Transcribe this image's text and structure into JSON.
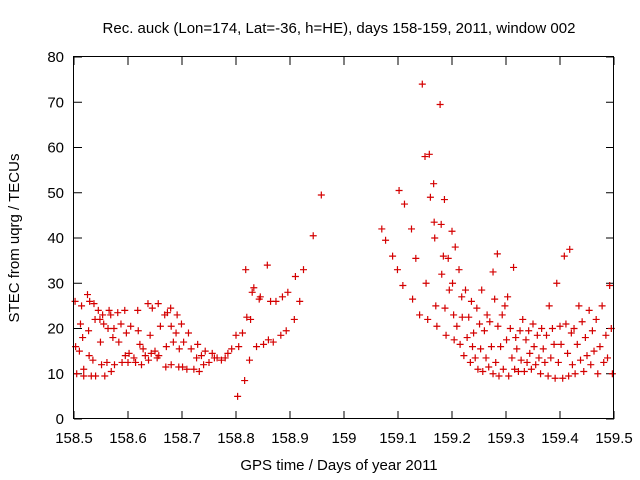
{
  "chart_data": {
    "type": "scatter",
    "title": "Rec. auck (Lon=174, Lat=-36, h=HE), days 158-159, 2011, window 002",
    "xlabel": "GPS time / Days of year 2011",
    "ylabel": "STEC from uqrg / TECUs",
    "xlim": [
      158.5,
      159.5
    ],
    "ylim": [
      0,
      80
    ],
    "xticks": [
      "158.5",
      "158.6",
      "158.7",
      "158.8",
      "158.9",
      "159",
      "159.1",
      "159.2",
      "159.3",
      "159.4",
      "159.5"
    ],
    "yticks": [
      "0",
      "10",
      "20",
      "30",
      "40",
      "50",
      "60",
      "70",
      "80"
    ],
    "grid": false,
    "legend": "none",
    "marker": "plus",
    "color": "#d40000",
    "points": [
      [
        158.502,
        26.0
      ],
      [
        158.503,
        16.0
      ],
      [
        158.505,
        10.0
      ],
      [
        158.51,
        15.0
      ],
      [
        158.512,
        21.0
      ],
      [
        158.514,
        25.0
      ],
      [
        158.516,
        18.0
      ],
      [
        158.518,
        11.0
      ],
      [
        158.518,
        9.5
      ],
      [
        158.525,
        27.5
      ],
      [
        158.527,
        19.5
      ],
      [
        158.528,
        14.0
      ],
      [
        158.529,
        26.0
      ],
      [
        158.532,
        9.5
      ],
      [
        158.535,
        13.0
      ],
      [
        158.537,
        25.5
      ],
      [
        158.539,
        22.0
      ],
      [
        158.54,
        9.5
      ],
      [
        158.545,
        24.0
      ],
      [
        158.548,
        22.0
      ],
      [
        158.549,
        17.0
      ],
      [
        158.551,
        12.0
      ],
      [
        158.553,
        23.0
      ],
      [
        158.555,
        21.0
      ],
      [
        158.557,
        9.5
      ],
      [
        158.561,
        12.5
      ],
      [
        158.563,
        20.0
      ],
      [
        158.565,
        24.0
      ],
      [
        158.568,
        23.0
      ],
      [
        158.569,
        10.5
      ],
      [
        158.572,
        18.0
      ],
      [
        158.574,
        20.0
      ],
      [
        158.575,
        12.0
      ],
      [
        158.581,
        23.5
      ],
      [
        158.583,
        17.0
      ],
      [
        158.587,
        21.0
      ],
      [
        158.589,
        12.5
      ],
      [
        158.594,
        24.0
      ],
      [
        158.595,
        14.0
      ],
      [
        158.597,
        19.0
      ],
      [
        158.6,
        12.5
      ],
      [
        158.602,
        14.5
      ],
      [
        158.605,
        20.5
      ],
      [
        158.611,
        13.5
      ],
      [
        158.614,
        12.5
      ],
      [
        158.618,
        24.0
      ],
      [
        158.619,
        19.5
      ],
      [
        158.622,
        16.5
      ],
      [
        158.625,
        12.0
      ],
      [
        158.628,
        15.5
      ],
      [
        158.632,
        14.0
      ],
      [
        158.637,
        25.5
      ],
      [
        158.638,
        13.0
      ],
      [
        158.641,
        18.5
      ],
      [
        158.643,
        14.5
      ],
      [
        158.645,
        24.5
      ],
      [
        158.65,
        15.0
      ],
      [
        158.654,
        13.5
      ],
      [
        158.656,
        25.5
      ],
      [
        158.657,
        14.0
      ],
      [
        158.66,
        20.5
      ],
      [
        158.668,
        23.0
      ],
      [
        158.67,
        11.5
      ],
      [
        158.671,
        16.0
      ],
      [
        158.673,
        23.5
      ],
      [
        158.679,
        24.5
      ],
      [
        158.68,
        12.0
      ],
      [
        158.68,
        20.5
      ],
      [
        158.684,
        17.0
      ],
      [
        158.689,
        19.0
      ],
      [
        158.691,
        23.0
      ],
      [
        158.694,
        11.5
      ],
      [
        158.695,
        15.5
      ],
      [
        158.699,
        21.0
      ],
      [
        158.701,
        11.5
      ],
      [
        158.703,
        17.0
      ],
      [
        158.709,
        11.0
      ],
      [
        158.712,
        19.0
      ],
      [
        158.717,
        15.5
      ],
      [
        158.722,
        11.0
      ],
      [
        158.727,
        13.5
      ],
      [
        158.729,
        16.5
      ],
      [
        158.732,
        10.5
      ],
      [
        158.736,
        14.0
      ],
      [
        158.74,
        12.0
      ],
      [
        158.743,
        15.0
      ],
      [
        158.75,
        12.5
      ],
      [
        158.756,
        14.5
      ],
      [
        158.76,
        13.5
      ],
      [
        158.765,
        13.5
      ],
      [
        158.773,
        13.0
      ],
      [
        158.78,
        13.5
      ],
      [
        158.785,
        14.5
      ],
      [
        158.792,
        15.5
      ],
      [
        158.8,
        18.5
      ],
      [
        158.803,
        5.0
      ],
      [
        158.805,
        16.0
      ],
      [
        158.812,
        19.0
      ],
      [
        158.816,
        8.5
      ],
      [
        158.818,
        33.0
      ],
      [
        158.82,
        22.5
      ],
      [
        158.825,
        13.0
      ],
      [
        158.827,
        22.0
      ],
      [
        158.83,
        28.0
      ],
      [
        158.833,
        29.0
      ],
      [
        158.838,
        16.0
      ],
      [
        158.843,
        26.5
      ],
      [
        158.845,
        27.0
      ],
      [
        158.851,
        16.5
      ],
      [
        158.858,
        34.0
      ],
      [
        158.86,
        17.5
      ],
      [
        158.864,
        26.0
      ],
      [
        158.869,
        17.0
      ],
      [
        158.874,
        26.0
      ],
      [
        158.883,
        18.5
      ],
      [
        158.886,
        27.0
      ],
      [
        158.893,
        19.5
      ],
      [
        158.896,
        28.0
      ],
      [
        158.908,
        22.0
      ],
      [
        158.91,
        31.5
      ],
      [
        158.918,
        26.0
      ],
      [
        158.925,
        33.0
      ],
      [
        158.943,
        40.5
      ],
      [
        158.958,
        49.5
      ],
      [
        159.07,
        42.0
      ],
      [
        159.077,
        39.5
      ],
      [
        159.09,
        36.0
      ],
      [
        159.099,
        33.0
      ],
      [
        159.102,
        50.5
      ],
      [
        159.109,
        29.5
      ],
      [
        159.112,
        47.5
      ],
      [
        159.125,
        42.0
      ],
      [
        159.127,
        26.5
      ],
      [
        159.133,
        35.5
      ],
      [
        159.14,
        23.0
      ],
      [
        159.145,
        74.0
      ],
      [
        159.15,
        58.0
      ],
      [
        159.152,
        30.0
      ],
      [
        159.155,
        22.0
      ],
      [
        159.158,
        58.5
      ],
      [
        159.16,
        49.0
      ],
      [
        159.166,
        52.0
      ],
      [
        159.167,
        43.5
      ],
      [
        159.168,
        40.0
      ],
      [
        159.17,
        25.0
      ],
      [
        159.172,
        20.5
      ],
      [
        159.178,
        69.5
      ],
      [
        159.18,
        43.0
      ],
      [
        159.181,
        32.0
      ],
      [
        159.184,
        36.0
      ],
      [
        159.186,
        48.5
      ],
      [
        159.187,
        24.5
      ],
      [
        159.189,
        18.5
      ],
      [
        159.193,
        35.5
      ],
      [
        159.195,
        28.5
      ],
      [
        159.2,
        41.5
      ],
      [
        159.201,
        30.0
      ],
      [
        159.203,
        23.0
      ],
      [
        159.204,
        17.5
      ],
      [
        159.206,
        38.0
      ],
      [
        159.209,
        20.5
      ],
      [
        159.213,
        33.0
      ],
      [
        159.215,
        16.5
      ],
      [
        159.218,
        27.0
      ],
      [
        159.219,
        22.5
      ],
      [
        159.222,
        14.0
      ],
      [
        159.225,
        28.5
      ],
      [
        159.228,
        18.0
      ],
      [
        159.231,
        22.5
      ],
      [
        159.234,
        12.5
      ],
      [
        159.236,
        26.0
      ],
      [
        159.238,
        16.0
      ],
      [
        159.24,
        19.0
      ],
      [
        159.243,
        13.5
      ],
      [
        159.246,
        24.5
      ],
      [
        159.248,
        11.0
      ],
      [
        159.251,
        21.0
      ],
      [
        159.253,
        15.5
      ],
      [
        159.255,
        28.5
      ],
      [
        159.257,
        10.5
      ],
      [
        159.26,
        19.5
      ],
      [
        159.263,
        13.5
      ],
      [
        159.265,
        23.0
      ],
      [
        159.268,
        11.5
      ],
      [
        159.27,
        21.5
      ],
      [
        159.273,
        16.0
      ],
      [
        159.276,
        32.5
      ],
      [
        159.276,
        10.0
      ],
      [
        159.279,
        26.5
      ],
      [
        159.281,
        12.5
      ],
      [
        159.284,
        36.5
      ],
      [
        159.285,
        20.5
      ],
      [
        159.287,
        9.5
      ],
      [
        159.29,
        16.0
      ],
      [
        159.293,
        23.0
      ],
      [
        159.295,
        11.0
      ],
      [
        159.298,
        25.0
      ],
      [
        159.301,
        17.5
      ],
      [
        159.303,
        27.0
      ],
      [
        159.305,
        9.5
      ],
      [
        159.308,
        20.0
      ],
      [
        159.311,
        13.5
      ],
      [
        159.314,
        33.5
      ],
      [
        159.316,
        11.0
      ],
      [
        159.318,
        18.0
      ],
      [
        159.32,
        15.5
      ],
      [
        159.323,
        10.5
      ],
      [
        159.326,
        19.5
      ],
      [
        159.328,
        13.0
      ],
      [
        159.331,
        22.0
      ],
      [
        159.334,
        10.5
      ],
      [
        159.337,
        17.5
      ],
      [
        159.339,
        12.5
      ],
      [
        159.342,
        19.5
      ],
      [
        159.344,
        14.5
      ],
      [
        159.347,
        11.0
      ],
      [
        159.35,
        21.0
      ],
      [
        159.352,
        16.0
      ],
      [
        159.355,
        12.0
      ],
      [
        159.358,
        18.5
      ],
      [
        159.361,
        13.5
      ],
      [
        159.364,
        10.0
      ],
      [
        159.366,
        20.0
      ],
      [
        159.369,
        15.5
      ],
      [
        159.372,
        12.5
      ],
      [
        159.375,
        18.5
      ],
      [
        159.378,
        9.5
      ],
      [
        159.38,
        25.0
      ],
      [
        159.383,
        13.5
      ],
      [
        159.386,
        20.0
      ],
      [
        159.389,
        16.5
      ],
      [
        159.391,
        9.0
      ],
      [
        159.394,
        30.0
      ],
      [
        159.397,
        12.5
      ],
      [
        159.4,
        20.5
      ],
      [
        159.402,
        16.5
      ],
      [
        159.405,
        9.0
      ],
      [
        159.408,
        36.0
      ],
      [
        159.411,
        21.0
      ],
      [
        159.414,
        14.5
      ],
      [
        159.416,
        9.5
      ],
      [
        159.418,
        37.5
      ],
      [
        159.421,
        19.0
      ],
      [
        159.423,
        12.0
      ],
      [
        159.426,
        20.0
      ],
      [
        159.428,
        10.0
      ],
      [
        159.432,
        16.5
      ],
      [
        159.435,
        25.0
      ],
      [
        159.438,
        13.0
      ],
      [
        159.441,
        21.5
      ],
      [
        159.444,
        10.5
      ],
      [
        159.447,
        18.0
      ],
      [
        159.45,
        14.0
      ],
      [
        159.454,
        24.0
      ],
      [
        159.457,
        12.0
      ],
      [
        159.46,
        19.5
      ],
      [
        159.463,
        15.0
      ],
      [
        159.467,
        22.0
      ],
      [
        159.47,
        10.0
      ],
      [
        159.474,
        16.0
      ],
      [
        159.478,
        25.0
      ],
      [
        159.481,
        12.5
      ],
      [
        159.485,
        18.5
      ],
      [
        159.488,
        13.5
      ],
      [
        159.492,
        29.5
      ],
      [
        159.495,
        20.0
      ],
      [
        159.497,
        10.0
      ]
    ]
  }
}
